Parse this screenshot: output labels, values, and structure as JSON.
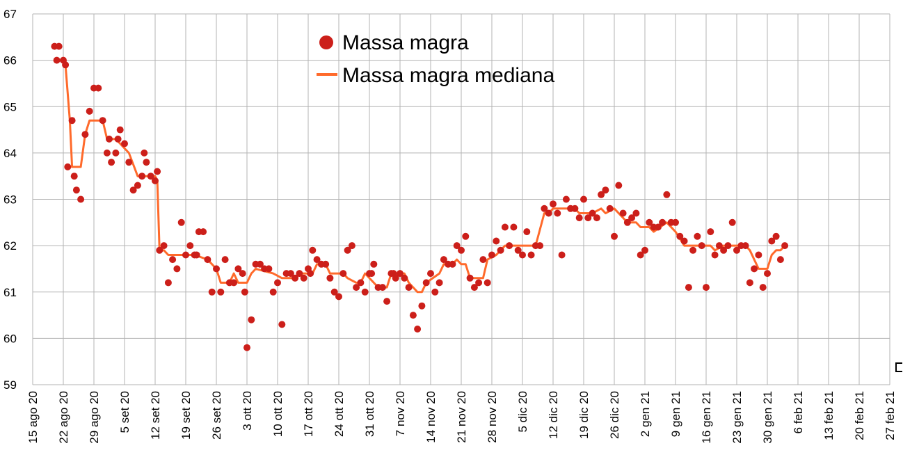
{
  "chart_data": {
    "type": "line",
    "title": "",
    "xlabel": "",
    "ylabel": "",
    "ylim": [
      59,
      67
    ],
    "yticks": [
      "59",
      "60",
      "61",
      "62",
      "63",
      "64",
      "65",
      "66",
      "67"
    ],
    "xlim_days": [
      0,
      196
    ],
    "x_start_date": "2020-08-15",
    "xticks": [
      "15 ago 20",
      "22 ago 20",
      "29 ago 20",
      "5 set 20",
      "12 set 20",
      "19 set 20",
      "26 set 20",
      "3 ott 20",
      "10 ott 20",
      "17 ott 20",
      "24 ott 20",
      "31 ott 20",
      "7 nov 20",
      "14 nov 20",
      "21 nov 20",
      "28 nov 20",
      "5 dic 20",
      "12 dic 20",
      "19 dic 20",
      "26 dic 20",
      "2 gen 21",
      "9 gen 21",
      "16 gen 21",
      "23 gen 21",
      "30 gen 21",
      "6 feb 21",
      "13 feb 21",
      "20 feb 21",
      "27 feb 21"
    ],
    "grid": true,
    "legend_position": "top-center",
    "series": [
      {
        "name": "Massa magra",
        "type": "scatter",
        "color": "#cc1f1a",
        "points": [
          [
            5,
            66.3
          ],
          [
            5.5,
            66.0
          ],
          [
            6,
            66.3
          ],
          [
            7,
            66.0
          ],
          [
            7.5,
            65.9
          ],
          [
            8,
            63.7
          ],
          [
            9,
            64.7
          ],
          [
            9.5,
            63.5
          ],
          [
            10,
            63.2
          ],
          [
            11,
            63.0
          ],
          [
            12,
            64.4
          ],
          [
            13,
            64.9
          ],
          [
            14,
            65.4
          ],
          [
            15,
            65.4
          ],
          [
            16,
            64.7
          ],
          [
            17,
            64.0
          ],
          [
            17.5,
            64.3
          ],
          [
            18,
            63.8
          ],
          [
            19,
            64.0
          ],
          [
            19.5,
            64.3
          ],
          [
            20,
            64.5
          ],
          [
            21,
            64.2
          ],
          [
            22,
            63.8
          ],
          [
            23,
            63.2
          ],
          [
            24,
            63.3
          ],
          [
            25,
            63.5
          ],
          [
            25.5,
            64.0
          ],
          [
            26,
            63.8
          ],
          [
            27,
            63.5
          ],
          [
            28,
            63.4
          ],
          [
            28.5,
            63.6
          ],
          [
            29,
            61.9
          ],
          [
            30,
            62.0
          ],
          [
            31,
            61.2
          ],
          [
            32,
            61.7
          ],
          [
            33,
            61.5
          ],
          [
            34,
            62.5
          ],
          [
            35,
            61.8
          ],
          [
            36,
            62.0
          ],
          [
            37,
            61.8
          ],
          [
            37.5,
            61.8
          ],
          [
            38,
            62.3
          ],
          [
            39,
            62.3
          ],
          [
            40,
            61.7
          ],
          [
            41,
            61.0
          ],
          [
            42,
            61.5
          ],
          [
            43,
            61.0
          ],
          [
            44,
            61.7
          ],
          [
            45,
            61.2
          ],
          [
            46,
            61.2
          ],
          [
            47,
            61.5
          ],
          [
            48,
            61.4
          ],
          [
            48.5,
            61.0
          ],
          [
            49,
            59.8
          ],
          [
            50,
            60.4
          ],
          [
            51,
            61.6
          ],
          [
            52,
            61.6
          ],
          [
            53,
            61.5
          ],
          [
            54,
            61.5
          ],
          [
            55,
            61.0
          ],
          [
            56,
            61.2
          ],
          [
            57,
            60.3
          ],
          [
            58,
            61.4
          ],
          [
            59,
            61.4
          ],
          [
            60,
            61.3
          ],
          [
            61,
            61.4
          ],
          [
            62,
            61.3
          ],
          [
            63,
            61.5
          ],
          [
            63.5,
            61.4
          ],
          [
            64,
            61.9
          ],
          [
            65,
            61.7
          ],
          [
            66,
            61.6
          ],
          [
            67,
            61.6
          ],
          [
            68,
            61.3
          ],
          [
            69,
            61.0
          ],
          [
            70,
            60.9
          ],
          [
            71,
            61.4
          ],
          [
            72,
            61.9
          ],
          [
            73,
            62.0
          ],
          [
            74,
            61.1
          ],
          [
            75,
            61.2
          ],
          [
            76,
            61.0
          ],
          [
            77,
            61.4
          ],
          [
            77.5,
            61.4
          ],
          [
            78,
            61.6
          ],
          [
            79,
            61.1
          ],
          [
            80,
            61.1
          ],
          [
            81,
            60.8
          ],
          [
            82,
            61.4
          ],
          [
            82.5,
            61.4
          ],
          [
            83,
            61.3
          ],
          [
            84,
            61.4
          ],
          [
            85,
            61.3
          ],
          [
            86,
            61.1
          ],
          [
            87,
            60.5
          ],
          [
            88,
            60.2
          ],
          [
            89,
            60.7
          ],
          [
            90,
            61.2
          ],
          [
            91,
            61.4
          ],
          [
            92,
            61.0
          ],
          [
            93,
            61.2
          ],
          [
            94,
            61.7
          ],
          [
            95,
            61.6
          ],
          [
            96,
            61.6
          ],
          [
            97,
            62.0
          ],
          [
            98,
            61.9
          ],
          [
            99,
            62.2
          ],
          [
            100,
            61.3
          ],
          [
            101,
            61.1
          ],
          [
            102,
            61.2
          ],
          [
            103,
            61.7
          ],
          [
            104,
            61.2
          ],
          [
            105,
            61.8
          ],
          [
            106,
            62.1
          ],
          [
            107,
            61.9
          ],
          [
            108,
            62.4
          ],
          [
            109,
            62.0
          ],
          [
            110,
            62.4
          ],
          [
            111,
            61.9
          ],
          [
            112,
            61.8
          ],
          [
            113,
            62.3
          ],
          [
            114,
            61.8
          ],
          [
            115,
            62.0
          ],
          [
            116,
            62.0
          ],
          [
            117,
            62.8
          ],
          [
            118,
            62.7
          ],
          [
            119,
            62.9
          ],
          [
            120,
            62.7
          ],
          [
            121,
            61.8
          ],
          [
            122,
            63.0
          ],
          [
            123,
            62.8
          ],
          [
            124,
            62.8
          ],
          [
            125,
            62.6
          ],
          [
            126,
            63.0
          ],
          [
            127,
            62.6
          ],
          [
            128,
            62.7
          ],
          [
            129,
            62.6
          ],
          [
            130,
            63.1
          ],
          [
            131,
            63.2
          ],
          [
            132,
            62.8
          ],
          [
            133,
            62.2
          ],
          [
            134,
            63.3
          ],
          [
            135,
            62.7
          ],
          [
            136,
            62.5
          ],
          [
            137,
            62.6
          ],
          [
            138,
            62.7
          ],
          [
            139,
            61.8
          ],
          [
            140,
            61.9
          ],
          [
            141,
            62.5
          ],
          [
            142,
            62.4
          ],
          [
            143,
            62.4
          ],
          [
            144,
            62.5
          ],
          [
            145,
            63.1
          ],
          [
            146,
            62.5
          ],
          [
            147,
            62.5
          ],
          [
            148,
            62.2
          ],
          [
            149,
            62.1
          ],
          [
            150,
            61.1
          ],
          [
            151,
            61.9
          ],
          [
            152,
            62.2
          ],
          [
            153,
            62.0
          ],
          [
            154,
            61.1
          ],
          [
            155,
            62.3
          ],
          [
            156,
            61.8
          ],
          [
            157,
            62.0
          ],
          [
            158,
            61.9
          ],
          [
            159,
            62.0
          ],
          [
            160,
            62.5
          ],
          [
            161,
            61.9
          ],
          [
            162,
            62.0
          ],
          [
            163,
            62.0
          ],
          [
            164,
            61.2
          ],
          [
            165,
            61.5
          ],
          [
            166,
            61.8
          ],
          [
            167,
            61.1
          ],
          [
            168,
            61.4
          ],
          [
            169,
            62.1
          ],
          [
            170,
            62.2
          ],
          [
            171,
            61.7
          ],
          [
            172,
            62.0
          ]
        ]
      },
      {
        "name": "Massa magra mediana",
        "type": "line",
        "color": "#ff6a2b",
        "points": [
          [
            7.5,
            65.9
          ],
          [
            8.5,
            64.7
          ],
          [
            9,
            63.7
          ],
          [
            11,
            63.7
          ],
          [
            12,
            64.4
          ],
          [
            13,
            64.7
          ],
          [
            16,
            64.7
          ],
          [
            17,
            64.3
          ],
          [
            19,
            64.3
          ],
          [
            20,
            64.2
          ],
          [
            22,
            64.0
          ],
          [
            24,
            63.5
          ],
          [
            28,
            63.5
          ],
          [
            28.5,
            63.4
          ],
          [
            29,
            61.9
          ],
          [
            30,
            61.9
          ],
          [
            31,
            61.8
          ],
          [
            37,
            61.8
          ],
          [
            40,
            61.7
          ],
          [
            41,
            61.6
          ],
          [
            42,
            61.5
          ],
          [
            43,
            61.2
          ],
          [
            45,
            61.2
          ],
          [
            46,
            61.4
          ],
          [
            47,
            61.2
          ],
          [
            49,
            61.2
          ],
          [
            50,
            61.4
          ],
          [
            51,
            61.5
          ],
          [
            55,
            61.4
          ],
          [
            57,
            61.3
          ],
          [
            60,
            61.3
          ],
          [
            61,
            61.4
          ],
          [
            64,
            61.4
          ],
          [
            65,
            61.6
          ],
          [
            67,
            61.6
          ],
          [
            68,
            61.4
          ],
          [
            71,
            61.4
          ],
          [
            72,
            61.3
          ],
          [
            74,
            61.2
          ],
          [
            75,
            61.2
          ],
          [
            76,
            61.4
          ],
          [
            78,
            61.2
          ],
          [
            79,
            61.1
          ],
          [
            81,
            61.1
          ],
          [
            82,
            61.4
          ],
          [
            85,
            61.4
          ],
          [
            86,
            61.2
          ],
          [
            87,
            61.1
          ],
          [
            88,
            61.0
          ],
          [
            89,
            61.0
          ],
          [
            90,
            61.2
          ],
          [
            93,
            61.4
          ],
          [
            94,
            61.6
          ],
          [
            96,
            61.6
          ],
          [
            97,
            61.7
          ],
          [
            98,
            61.6
          ],
          [
            99,
            61.6
          ],
          [
            100,
            61.3
          ],
          [
            103,
            61.3
          ],
          [
            104,
            61.7
          ],
          [
            106,
            61.8
          ],
          [
            107,
            61.9
          ],
          [
            108,
            62.0
          ],
          [
            115,
            62.0
          ],
          [
            117,
            62.7
          ],
          [
            118,
            62.7
          ],
          [
            119,
            62.8
          ],
          [
            124,
            62.8
          ],
          [
            125,
            62.7
          ],
          [
            128,
            62.7
          ],
          [
            130,
            62.8
          ],
          [
            131,
            62.7
          ],
          [
            133,
            62.8
          ],
          [
            134,
            62.7
          ],
          [
            135,
            62.6
          ],
          [
            136,
            62.5
          ],
          [
            138,
            62.5
          ],
          [
            139,
            62.4
          ],
          [
            141,
            62.4
          ],
          [
            142,
            62.3
          ],
          [
            145,
            62.5
          ],
          [
            147,
            62.3
          ],
          [
            149,
            62.0
          ],
          [
            152,
            62.0
          ],
          [
            155,
            62.0
          ],
          [
            156,
            61.9
          ],
          [
            158,
            62.0
          ],
          [
            163,
            62.0
          ],
          [
            164,
            61.9
          ],
          [
            166,
            61.5
          ],
          [
            167,
            61.5
          ],
          [
            168,
            61.5
          ],
          [
            169,
            61.8
          ],
          [
            170,
            61.9
          ],
          [
            171,
            61.9
          ],
          [
            172,
            62.0
          ]
        ]
      }
    ]
  }
}
